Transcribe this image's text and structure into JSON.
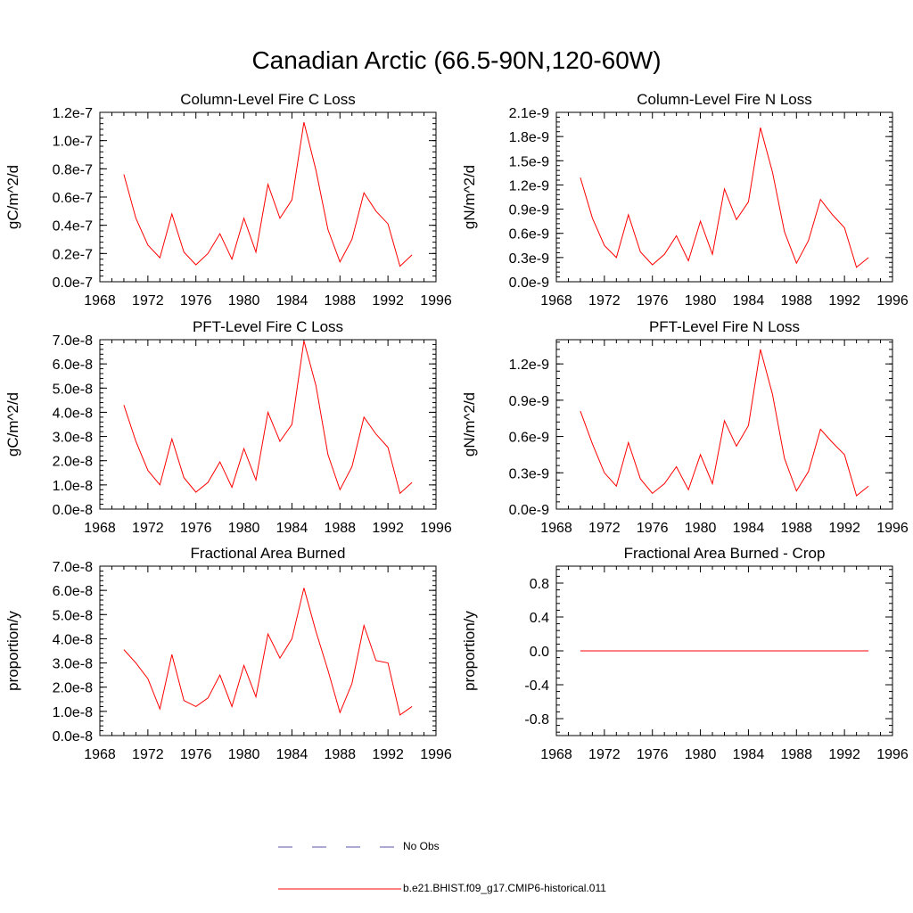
{
  "title": "Canadian Arctic (66.5-90N,120-60W)",
  "legend": [
    {
      "label": "No Obs",
      "color": "#5555aa",
      "style": "dashed"
    },
    {
      "label": "b.e21.BHIST.f09_g17.CMIP6-historical.011",
      "color": "#ff0000",
      "style": "solid"
    }
  ],
  "chart_data": [
    {
      "type": "line",
      "title": "Column-Level Fire C Loss",
      "ylabel": "gC/m^2/d",
      "xlabel": "",
      "xlim": [
        1968,
        1996
      ],
      "xticks": [
        "1968",
        "1972",
        "1976",
        "1980",
        "1984",
        "1988",
        "1992",
        "1996"
      ],
      "ylim": [
        0,
        1.2e-07
      ],
      "yticks": [
        "0.0e-7",
        "0.2e-7",
        "0.4e-7",
        "0.6e-7",
        "0.8e-7",
        "1.0e-7",
        "1.2e-7"
      ],
      "series": [
        {
          "color": "#ff0000",
          "x": [
            1970,
            1971,
            1972,
            1973,
            1974,
            1975,
            1976,
            1977,
            1978,
            1979,
            1980,
            1981,
            1982,
            1983,
            1984,
            1985,
            1986,
            1987,
            1988,
            1989,
            1990,
            1991,
            1992,
            1993,
            1994
          ],
          "y": [
            7.6e-08,
            4.5e-08,
            2.6e-08,
            1.7e-08,
            4.8e-08,
            2.1e-08,
            1.2e-08,
            2e-08,
            3.4e-08,
            1.6e-08,
            4.5e-08,
            2.1e-08,
            6.9e-08,
            4.5e-08,
            5.8e-08,
            1.13e-07,
            7.9e-08,
            3.7e-08,
            1.4e-08,
            3e-08,
            6.3e-08,
            5e-08,
            4.1e-08,
            1.1e-08,
            1.9e-08
          ]
        }
      ]
    },
    {
      "type": "line",
      "title": "Column-Level Fire N Loss",
      "ylabel": "gN/m^2/d",
      "xlabel": "",
      "xlim": [
        1968,
        1996
      ],
      "xticks": [
        "1968",
        "1972",
        "1976",
        "1980",
        "1984",
        "1988",
        "1992",
        "1996"
      ],
      "ylim": [
        0,
        2.1e-09
      ],
      "yticks": [
        "0.0e-9",
        "0.3e-9",
        "0.6e-9",
        "0.9e-9",
        "1.2e-9",
        "1.5e-9",
        "1.8e-9",
        "2.1e-9"
      ],
      "series": [
        {
          "color": "#ff0000",
          "x": [
            1970,
            1971,
            1972,
            1973,
            1974,
            1975,
            1976,
            1977,
            1978,
            1979,
            1980,
            1981,
            1982,
            1983,
            1984,
            1985,
            1986,
            1987,
            1988,
            1989,
            1990,
            1991,
            1992,
            1993,
            1994
          ],
          "y": [
            1.29e-09,
            7.9e-10,
            4.5e-10,
            3e-10,
            8.3e-10,
            3.7e-10,
            2.1e-10,
            3.4e-10,
            5.7e-10,
            2.6e-10,
            7.5e-10,
            3.4e-10,
            1.15e-09,
            7.7e-10,
            9.9e-10,
            1.91e-09,
            1.36e-09,
            6.2e-10,
            2.3e-10,
            5.1e-10,
            1.02e-09,
            8.3e-10,
            6.7e-10,
            1.8e-10,
            3e-10
          ]
        }
      ]
    },
    {
      "type": "line",
      "title": "PFT-Level Fire C Loss",
      "ylabel": "gC/m^2/d",
      "xlabel": "",
      "xlim": [
        1968,
        1996
      ],
      "xticks": [
        "1968",
        "1972",
        "1976",
        "1980",
        "1984",
        "1988",
        "1992",
        "1996"
      ],
      "ylim": [
        0,
        7e-08
      ],
      "yticks": [
        "0.0e-8",
        "1.0e-8",
        "2.0e-8",
        "3.0e-8",
        "4.0e-8",
        "5.0e-8",
        "6.0e-8",
        "7.0e-8"
      ],
      "series": [
        {
          "color": "#ff0000",
          "x": [
            1970,
            1971,
            1972,
            1973,
            1974,
            1975,
            1976,
            1977,
            1978,
            1979,
            1980,
            1981,
            1982,
            1983,
            1984,
            1985,
            1986,
            1987,
            1988,
            1989,
            1990,
            1991,
            1992,
            1993,
            1994
          ],
          "y": [
            4.3e-08,
            2.8e-08,
            1.6e-08,
            1e-08,
            2.9e-08,
            1.3e-08,
            7e-09,
            1.1e-08,
            1.95e-08,
            9e-09,
            2.5e-08,
            1.2e-08,
            4e-08,
            2.8e-08,
            3.5e-08,
            6.95e-08,
            5.1e-08,
            2.25e-08,
            8e-09,
            1.75e-08,
            3.8e-08,
            3.1e-08,
            2.55e-08,
            6.5e-09,
            1.1e-08
          ]
        }
      ]
    },
    {
      "type": "line",
      "title": "PFT-Level Fire N Loss",
      "ylabel": "gN/m^2/d",
      "xlabel": "",
      "xlim": [
        1968,
        1996
      ],
      "xticks": [
        "1968",
        "1972",
        "1976",
        "1980",
        "1984",
        "1988",
        "1992",
        "1996"
      ],
      "ylim": [
        0,
        1.4e-09
      ],
      "yticks": [
        "0.0e-9",
        "0.3e-9",
        "0.6e-9",
        "0.9e-9",
        "1.2e-9"
      ],
      "ytickvalues": [
        0,
        3e-10,
        6e-10,
        9e-10,
        1.2e-09
      ],
      "series": [
        {
          "color": "#ff0000",
          "x": [
            1970,
            1971,
            1972,
            1973,
            1974,
            1975,
            1976,
            1977,
            1978,
            1979,
            1980,
            1981,
            1982,
            1983,
            1984,
            1985,
            1986,
            1987,
            1988,
            1989,
            1990,
            1991,
            1992,
            1993,
            1994
          ],
          "y": [
            8.1e-10,
            5.4e-10,
            3e-10,
            1.9e-10,
            5.5e-10,
            2.5e-10,
            1.3e-10,
            2.1e-10,
            3.5e-10,
            1.6e-10,
            4.5e-10,
            2.1e-10,
            7.3e-10,
            5.2e-10,
            6.9e-10,
            1.32e-09,
            9.5e-10,
            4.2e-10,
            1.5e-10,
            3.1e-10,
            6.6e-10,
            5.5e-10,
            4.5e-10,
            1.1e-10,
            1.9e-10
          ]
        }
      ]
    },
    {
      "type": "line",
      "title": "Fractional Area Burned",
      "ylabel": "proportion/y",
      "xlabel": "",
      "xlim": [
        1968,
        1996
      ],
      "xticks": [
        "1968",
        "1972",
        "1976",
        "1980",
        "1984",
        "1988",
        "1992",
        "1996"
      ],
      "ylim": [
        0,
        7e-08
      ],
      "yticks": [
        "0.0e-8",
        "1.0e-8",
        "2.0e-8",
        "3.0e-8",
        "4.0e-8",
        "5.0e-8",
        "6.0e-8",
        "7.0e-8"
      ],
      "series": [
        {
          "color": "#ff0000",
          "x": [
            1970,
            1971,
            1972,
            1973,
            1974,
            1975,
            1976,
            1977,
            1978,
            1979,
            1980,
            1981,
            1982,
            1983,
            1984,
            1985,
            1986,
            1987,
            1988,
            1989,
            1990,
            1991,
            1992,
            1993,
            1994
          ],
          "y": [
            3.55e-08,
            3e-08,
            2.35e-08,
            1.1e-08,
            3.35e-08,
            1.45e-08,
            1.2e-08,
            1.55e-08,
            2.5e-08,
            1.2e-08,
            2.9e-08,
            1.6e-08,
            4.2e-08,
            3.2e-08,
            4e-08,
            6.1e-08,
            4.3e-08,
            2.7e-08,
            9.5e-09,
            2.15e-08,
            4.55e-08,
            3.1e-08,
            3e-08,
            8.5e-09,
            1.2e-08
          ]
        }
      ]
    },
    {
      "type": "line",
      "title": "Fractional Area Burned - Crop",
      "ylabel": "proportion/y",
      "xlabel": "",
      "xlim": [
        1968,
        1996
      ],
      "xticks": [
        "1968",
        "1972",
        "1976",
        "1980",
        "1984",
        "1988",
        "1992",
        "1996"
      ],
      "ylim": [
        -1,
        1
      ],
      "yticks": [
        "-0.8",
        "-0.4",
        "0.0",
        "0.4",
        "0.8"
      ],
      "ytickvalues": [
        -0.8,
        -0.4,
        0,
        0.4,
        0.8
      ],
      "series": [
        {
          "color": "#ff0000",
          "x": [
            1970,
            1971,
            1972,
            1973,
            1974,
            1975,
            1976,
            1977,
            1978,
            1979,
            1980,
            1981,
            1982,
            1983,
            1984,
            1985,
            1986,
            1987,
            1988,
            1989,
            1990,
            1991,
            1992,
            1993,
            1994
          ],
          "y": [
            0,
            0,
            0,
            0,
            0,
            0,
            0,
            0,
            0,
            0,
            0,
            0,
            0,
            0,
            0,
            0,
            0,
            0,
            0,
            0,
            0,
            0,
            0,
            0,
            0
          ]
        }
      ]
    }
  ]
}
